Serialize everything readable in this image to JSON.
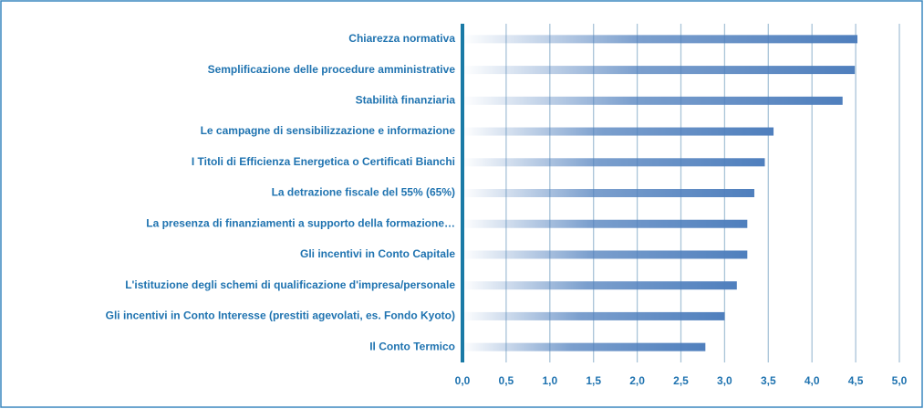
{
  "chart_data": {
    "type": "bar",
    "orientation": "horizontal",
    "categories": [
      "Chiarezza normativa",
      "Semplificazione delle procedure amministrative",
      "Stabilità finanziaria",
      "Le campagne di sensibilizzazione e informazione",
      "I Titoli di Efficienza Energetica o Certificati Bianchi",
      "La detrazione fiscale del 55% (65%)",
      "La presenza di finanziamenti a supporto della formazione…",
      "Gli incentivi in Conto Capitale",
      "L'istituzione degli schemi di qualificazione d'impresa/personale",
      "Gli incentivi in Conto Interesse (prestiti agevolati, es. Fondo Kyoto)",
      "Il Conto Termico"
    ],
    "values": [
      4.52,
      4.49,
      4.35,
      3.56,
      3.46,
      3.34,
      3.26,
      3.26,
      3.14,
      3.0,
      2.78
    ],
    "color": "#4f7fbd",
    "xlim": [
      0,
      5
    ],
    "xticks": [
      {
        "value": 0,
        "label": "0,0"
      },
      {
        "value": 0.5,
        "label": "0,5"
      },
      {
        "value": 1,
        "label": "1,0"
      },
      {
        "value": 1.5,
        "label": "1,5"
      },
      {
        "value": 2,
        "label": "2,0"
      },
      {
        "value": 2.5,
        "label": "2,5"
      },
      {
        "value": 3,
        "label": "3,0"
      },
      {
        "value": 3.5,
        "label": "3,5"
      },
      {
        "value": 4,
        "label": "4,0"
      },
      {
        "value": 4.5,
        "label": "4,5"
      },
      {
        "value": 5,
        "label": "5,0"
      }
    ],
    "grid": true
  }
}
